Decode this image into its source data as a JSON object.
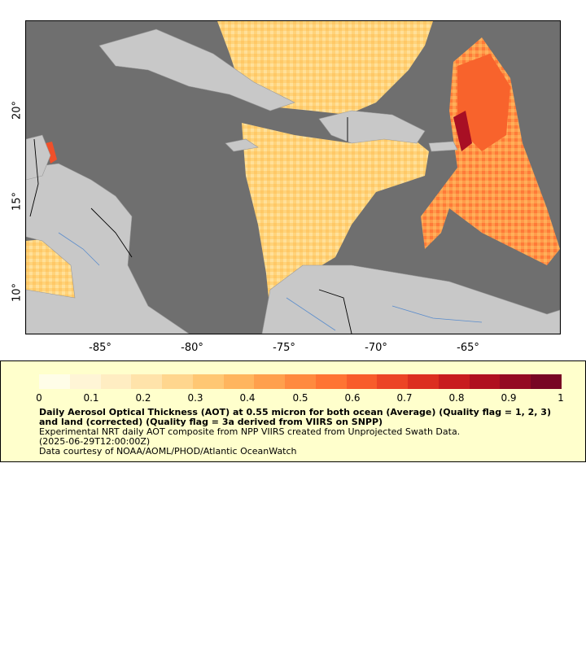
{
  "map": {
    "x_ticks": [
      "-85°",
      "-80°",
      "-75°",
      "-70°",
      "-65°"
    ],
    "y_ticks": [
      "20°",
      "15°",
      "10°"
    ],
    "colors": {
      "ocean_nodata": "#6f6f6f",
      "land": "#c8c8c8",
      "border": "#000000",
      "river": "#5a8ccc"
    }
  },
  "legend": {
    "scale_labels": [
      "0",
      "0.1",
      "0.2",
      "0.3",
      "0.4",
      "0.5",
      "0.6",
      "0.7",
      "0.8",
      "0.9",
      "1"
    ],
    "colormap": [
      "#fffde8",
      "#fff5d6",
      "#ffedc2",
      "#ffe3aa",
      "#ffd68e",
      "#ffc773",
      "#ffb55e",
      "#ffa04d",
      "#ff8a3f",
      "#ff7433",
      "#f85c2b",
      "#ec4425",
      "#dc2e20",
      "#c81c1e",
      "#b0101f",
      "#940a22",
      "#780624"
    ],
    "title": "Daily Aerosol Optical Thickness (AOT) at 0.55 micron for both ocean (Average) (Quality flag = 1, 2, 3) and land (corrected) (Quality flag = 3a derived from VIIRS on SNPP)",
    "line1": "Experimental NRT daily AOT composite from NPP VIIRS created from Unprojected Swath Data.",
    "line2": "(2025-06-29T12:00:00Z)",
    "line3": "Data courtesy of NOAA/AOML/PHOD/Atlantic OceanWatch"
  }
}
